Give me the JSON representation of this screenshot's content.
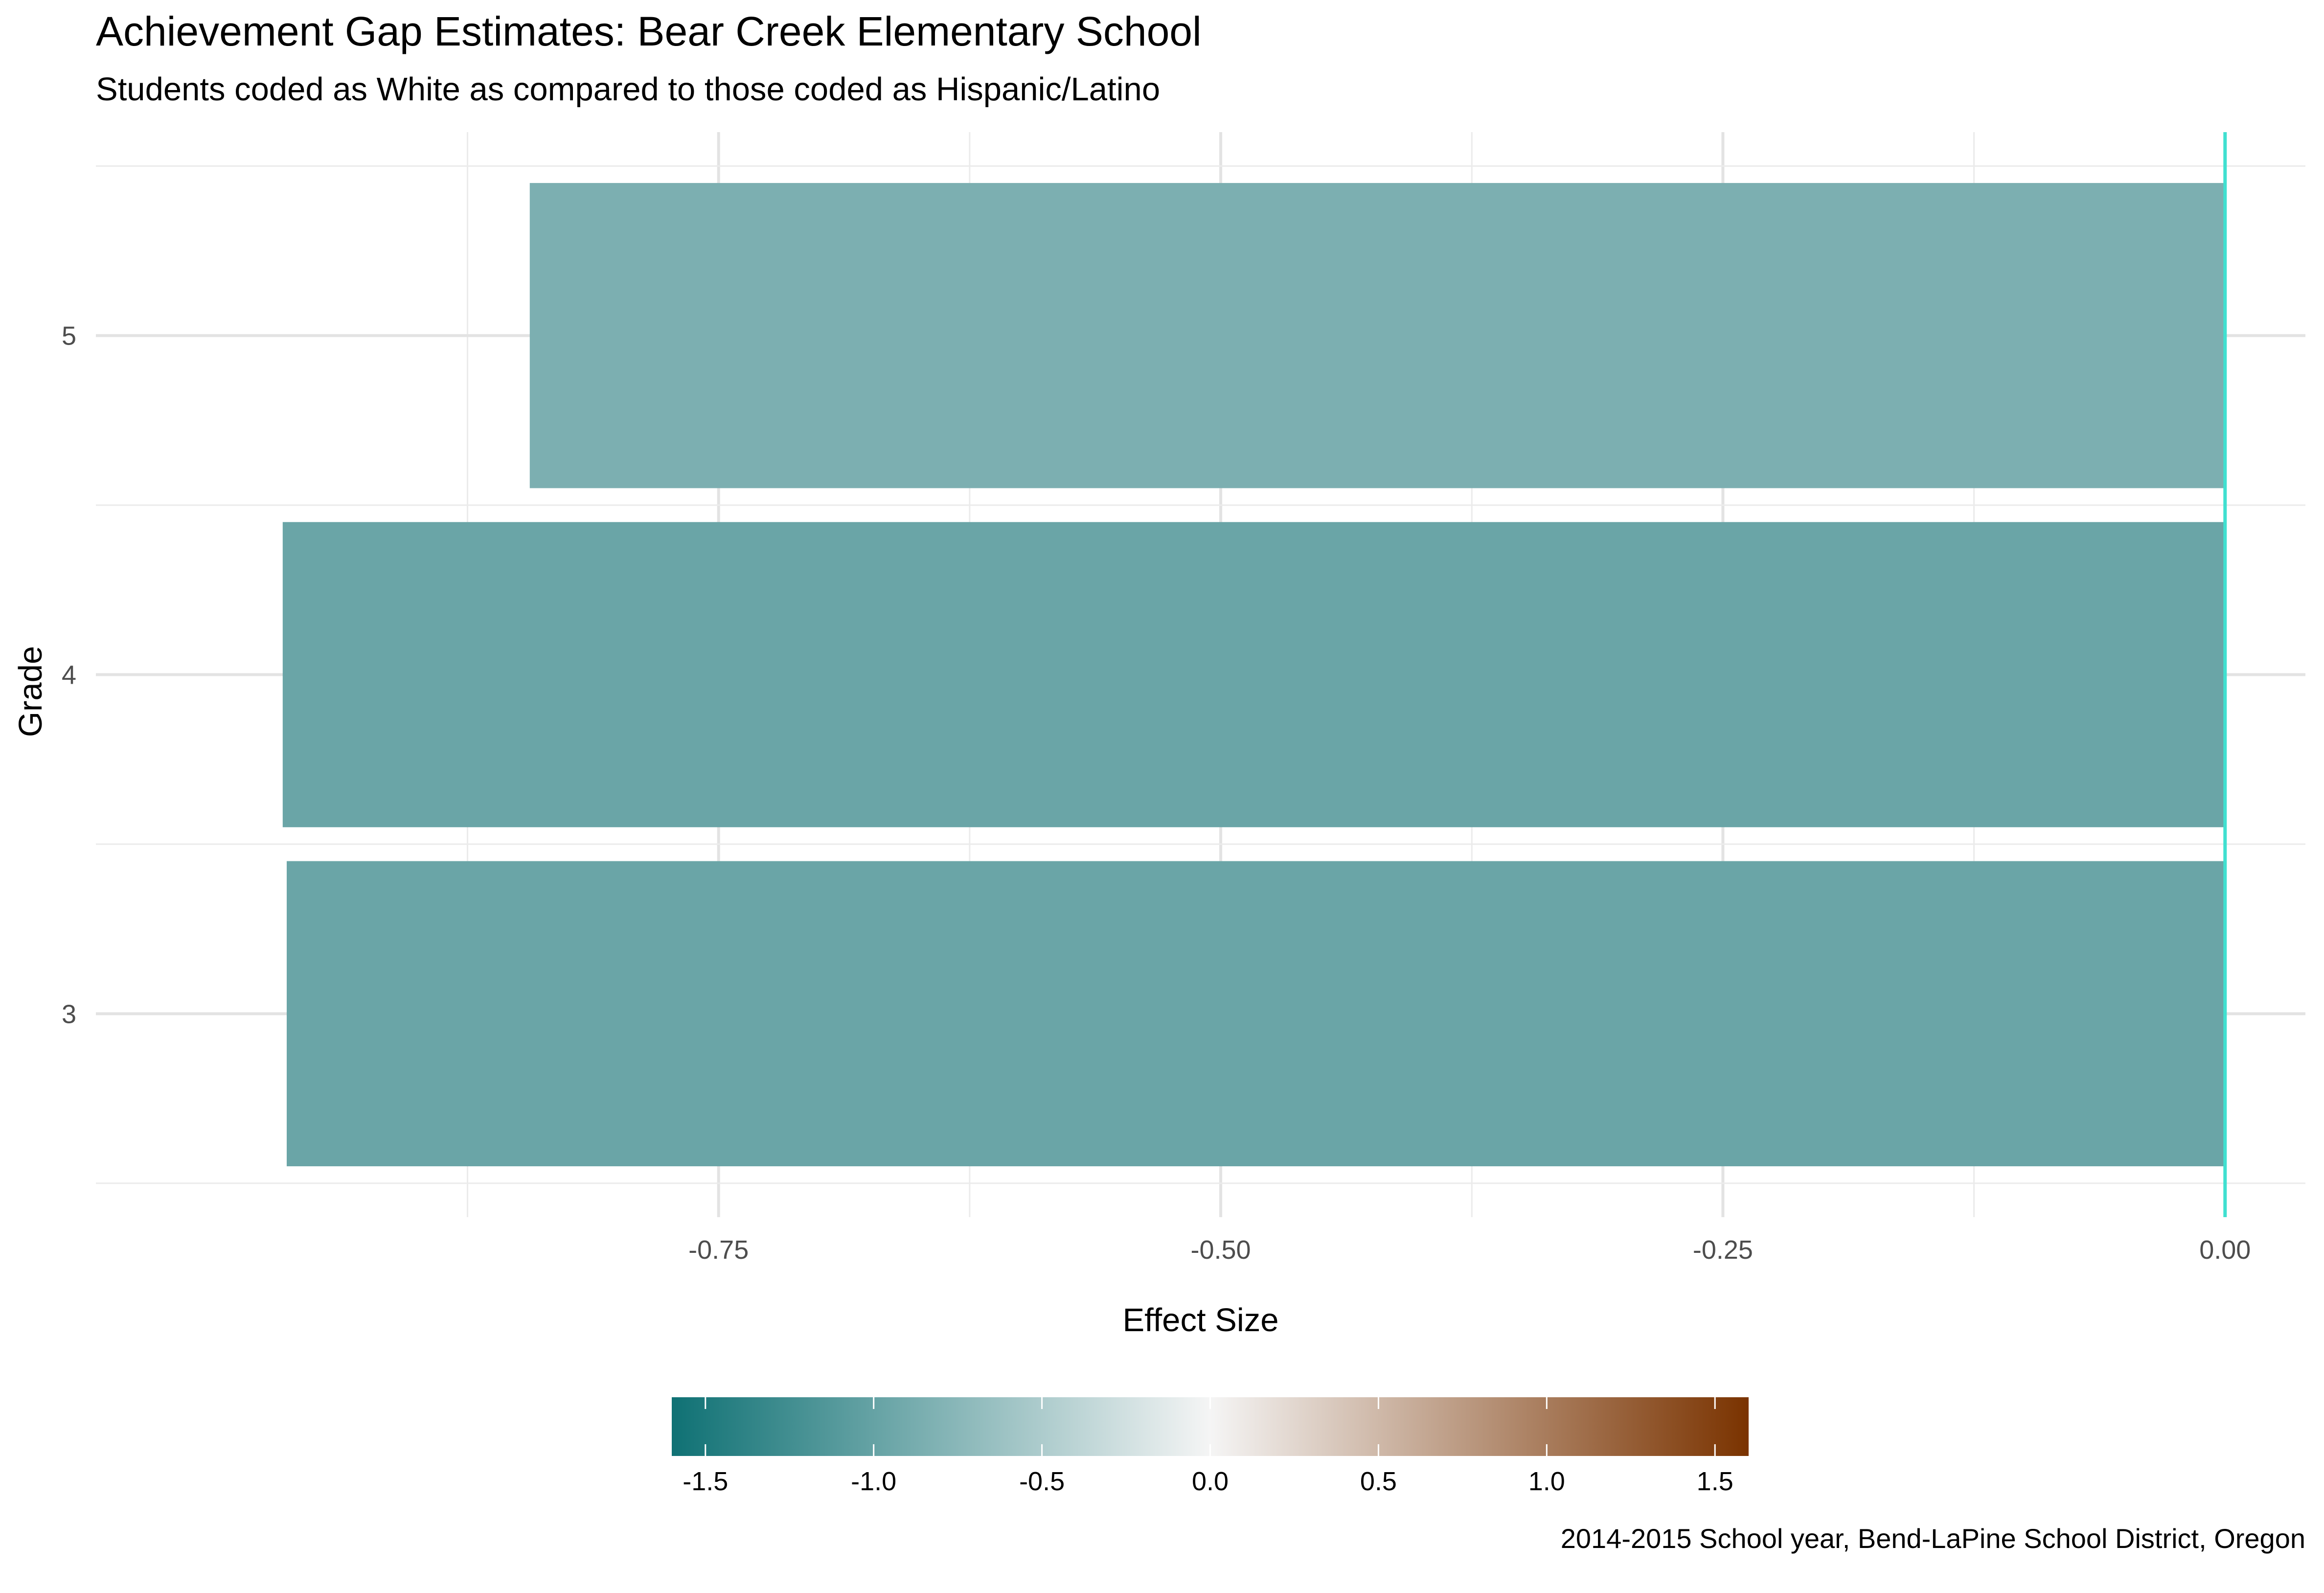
{
  "chart_data": {
    "type": "bar",
    "orientation": "horizontal",
    "title": "Achievement Gap Estimates: Bear Creek Elementary School",
    "subtitle": "Students coded as White as compared to those coded as Hispanic/Latino",
    "xlabel": "Effect Size",
    "ylabel": "Grade",
    "caption": "2014-2015 School year, Bend-LaPine School District, Oregon",
    "categories": [
      "3",
      "4",
      "5"
    ],
    "values": [
      -0.965,
      -0.967,
      -0.844
    ],
    "xlim": [
      -1.06,
      0.04
    ],
    "x_ticks": [
      -0.75,
      -0.5,
      -0.25,
      0
    ],
    "x_tick_labels": [
      "-0.75",
      "-0.50",
      "-0.25",
      "0.00"
    ],
    "reference_line": {
      "x": 0,
      "color": "#40e0d0"
    },
    "grid": true,
    "legend": {
      "type": "colorbar",
      "placement": "bottom",
      "range": [
        -1.6,
        1.6
      ],
      "ticks": [
        -1.5,
        -1.0,
        -0.5,
        0,
        0.5,
        1.0,
        1.5
      ],
      "tick_labels": [
        "-1.5",
        "-1.0",
        "-0.5",
        "0.0",
        "0.5",
        "1.0",
        "1.5"
      ],
      "colors": [
        "#0f7174",
        "#f5f5f5",
        "#7a3300"
      ]
    }
  }
}
